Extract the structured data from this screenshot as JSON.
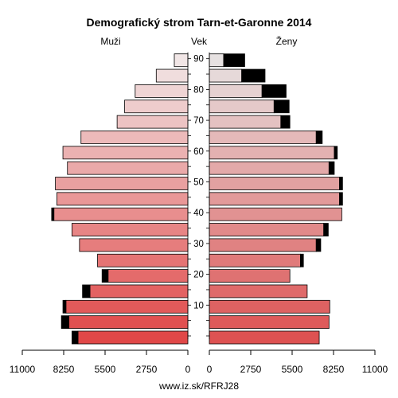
{
  "chart_data": {
    "type": "bar",
    "title": "Demografický strom Tarn-et-Garonne 2014",
    "left_label": "Muži",
    "center_label": "Vek",
    "right_label": "Ženy",
    "footer": "www.iz.sk/RFRJ28",
    "xlim": [
      0,
      11000
    ],
    "x_ticks": [
      0,
      2750,
      5500,
      8250,
      11000
    ],
    "x_tick_labels_left": [
      "11000",
      "8250",
      "5500",
      "2750",
      "0"
    ],
    "x_tick_labels_right": [
      "0",
      "2750",
      "5500",
      "8250",
      "11000"
    ],
    "age_ticks": [
      10,
      20,
      30,
      40,
      50,
      60,
      70,
      80,
      90
    ],
    "age_groups": [
      "0-4",
      "5-9",
      "10-14",
      "15-19",
      "20-24",
      "25-29",
      "30-34",
      "35-39",
      "40-44",
      "45-49",
      "50-54",
      "55-59",
      "60-64",
      "65-69",
      "70-74",
      "75-79",
      "80-84",
      "85-89",
      "90-94"
    ],
    "series": [
      {
        "name": "Muži",
        "values": [
          7300,
          7900,
          8100,
          6500,
          5300,
          6000,
          7200,
          7700,
          8900,
          8700,
          8800,
          8000,
          8300,
          7100,
          4700,
          4200,
          3500,
          2100,
          900
        ],
        "extra": [
          400,
          500,
          200,
          500,
          400,
          0,
          0,
          0,
          150,
          0,
          0,
          0,
          0,
          0,
          0,
          0,
          0,
          0,
          0
        ]
      },
      {
        "name": "Ženy",
        "values": [
          7300,
          7950,
          8000,
          6500,
          5350,
          6050,
          7100,
          7600,
          8800,
          8650,
          8650,
          7950,
          8300,
          7100,
          4750,
          4300,
          3500,
          2150,
          950
        ],
        "extra": [
          0,
          0,
          0,
          0,
          0,
          200,
          300,
          300,
          0,
          200,
          200,
          350,
          200,
          400,
          600,
          1000,
          1600,
          1550,
          1400
        ]
      }
    ],
    "colors": {
      "male_young": "#e04848",
      "male_old": "#f1e6e6",
      "female_young": "#dd5252",
      "female_old": "#e6e1e1",
      "extra": "#000000"
    }
  }
}
